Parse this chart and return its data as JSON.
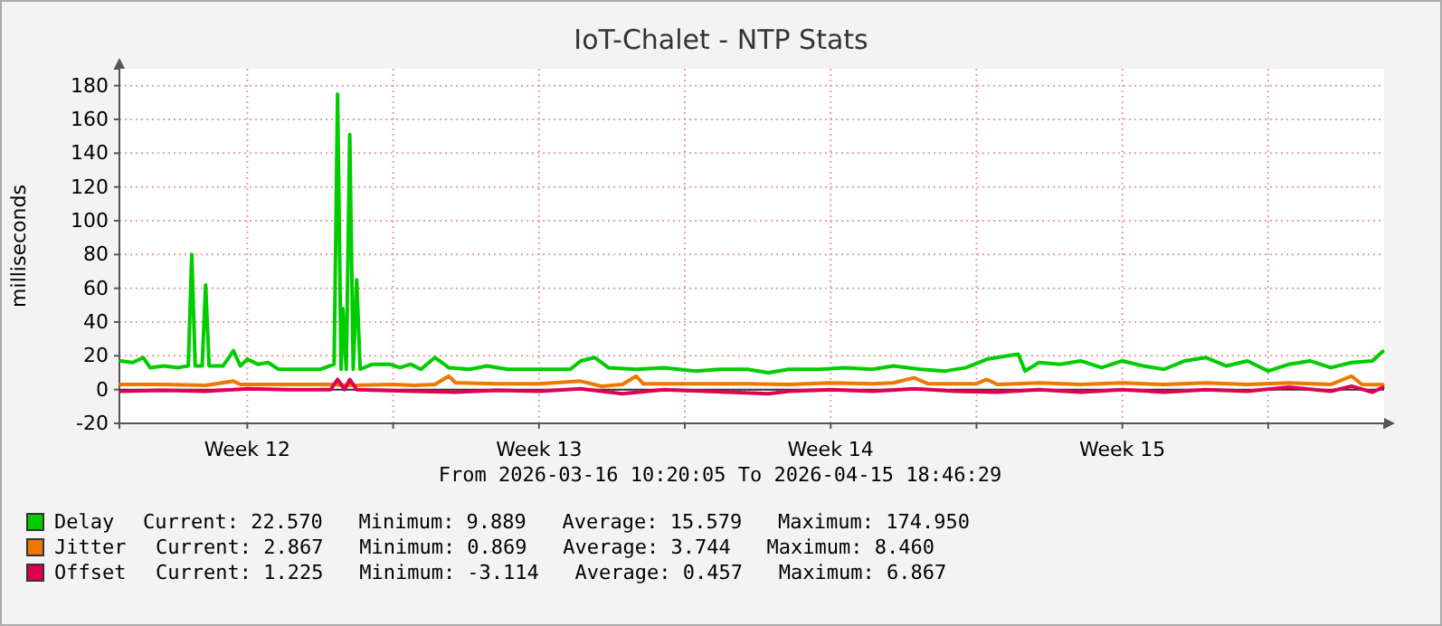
{
  "chart_data": {
    "type": "line",
    "title": "IoT-Chalet - NTP Stats",
    "subtitle": "From 2026-03-16 10:20:05 To 2026-04-15 18:46:29",
    "ylabel": "milliseconds",
    "xlim": [
      "2026-03-16T10:20",
      "2026-04-15T18:46"
    ],
    "xticks": [
      {
        "value": "2026-03-19T12:00",
        "label": "Week 12"
      },
      {
        "value": "2026-03-23",
        "label": null
      },
      {
        "value": "2026-03-26T12:00",
        "label": "Week 13"
      },
      {
        "value": "2026-03-30",
        "label": null
      },
      {
        "value": "2026-04-02T12:00",
        "label": "Week 14"
      },
      {
        "value": "2026-04-06",
        "label": null
      },
      {
        "value": "2026-04-09T12:00",
        "label": "Week 15"
      },
      {
        "value": "2026-04-13",
        "label": null
      }
    ],
    "ylim": [
      -20,
      190
    ],
    "yticks": [
      -20,
      0,
      20,
      40,
      60,
      80,
      100,
      120,
      140,
      160,
      180
    ],
    "grid": true,
    "legend": "bottom",
    "marker": "none",
    "line_style": "solid",
    "ref_lines": [
      {
        "axis": "y",
        "value": 0,
        "color": "#333333"
      }
    ],
    "series": [
      {
        "name": "Delay",
        "color": "#00cc00",
        "x": [
          "2026-03-16T11:00",
          "2026-03-16T18:00",
          "2026-03-17T00:00",
          "2026-03-17T04:00",
          "2026-03-17T12:00",
          "2026-03-17T20:00",
          "2026-03-18T02:00",
          "2026-03-18T04:00",
          "2026-03-18T06:00",
          "2026-03-18T10:00",
          "2026-03-18T12:00",
          "2026-03-18T14:00",
          "2026-03-18T22:00",
          "2026-03-19T04:00",
          "2026-03-19T08:00",
          "2026-03-19T12:00",
          "2026-03-19T18:00",
          "2026-03-20T00:00",
          "2026-03-20T06:00",
          "2026-03-20T18:00",
          "2026-03-21T06:00",
          "2026-03-21T14:00",
          "2026-03-21T16:00",
          "2026-03-21T18:00",
          "2026-03-21T19:00",
          "2026-03-21T21:00",
          "2026-03-21T23:00",
          "2026-03-22T01:00",
          "2026-03-22T03:00",
          "2026-03-22T05:00",
          "2026-03-22T12:00",
          "2026-03-22T22:00",
          "2026-03-23T04:00",
          "2026-03-23T10:00",
          "2026-03-23T16:00",
          "2026-03-24T00:00",
          "2026-03-24T08:00",
          "2026-03-24T20:00",
          "2026-03-25T06:00",
          "2026-03-25T18:00",
          "2026-03-26T06:00",
          "2026-03-26T20:00",
          "2026-03-27T06:00",
          "2026-03-27T12:00",
          "2026-03-27T20:00",
          "2026-03-28T04:00",
          "2026-03-28T20:00",
          "2026-03-29T12:00",
          "2026-03-30T06:00",
          "2026-03-30T20:00",
          "2026-03-31T12:00",
          "2026-04-01T00:00",
          "2026-04-01T12:00",
          "2026-04-02T06:00",
          "2026-04-02T20:00",
          "2026-04-03T12:00",
          "2026-04-04T00:00",
          "2026-04-04T16:00",
          "2026-04-05T06:00",
          "2026-04-05T18:00",
          "2026-04-06T06:00",
          "2026-04-06T18:00",
          "2026-04-07T00:00",
          "2026-04-07T04:00",
          "2026-04-07T12:00",
          "2026-04-08T00:00",
          "2026-04-08T12:00",
          "2026-04-09T00:00",
          "2026-04-09T12:00",
          "2026-04-10T00:00",
          "2026-04-10T12:00",
          "2026-04-11T00:00",
          "2026-04-11T12:00",
          "2026-04-12T00:00",
          "2026-04-12T12:00",
          "2026-04-13T00:00",
          "2026-04-13T12:00",
          "2026-04-14T00:00",
          "2026-04-14T12:00",
          "2026-04-15T00:00",
          "2026-04-15T12:00",
          "2026-04-15T18:00"
        ],
        "values": [
          17,
          16,
          19,
          13,
          14,
          13,
          14,
          80,
          14,
          14,
          62,
          14,
          14,
          23,
          14,
          18,
          15,
          16,
          12,
          12,
          12,
          15,
          175,
          12,
          48,
          12,
          151,
          12,
          65,
          12,
          15,
          15,
          13,
          15,
          12,
          19,
          13,
          12,
          14,
          12,
          12,
          12,
          12,
          17,
          19,
          13,
          12,
          13,
          11,
          12,
          12,
          10,
          12,
          12,
          13,
          12,
          14,
          12,
          11,
          13,
          18,
          20,
          21,
          11,
          16,
          15,
          17,
          13,
          17,
          14,
          12,
          17,
          19,
          14,
          17,
          11,
          15,
          17,
          13,
          16,
          17,
          22.6
        ]
      },
      {
        "name": "Jitter",
        "color": "#ee7700",
        "x": [
          "2026-03-16T11:00",
          "2026-03-17T12:00",
          "2026-03-18T12:00",
          "2026-03-19T04:00",
          "2026-03-19T08:00",
          "2026-03-20T12:00",
          "2026-03-21T12:00",
          "2026-03-22T00:00",
          "2026-03-23T00:00",
          "2026-03-23T12:00",
          "2026-03-24T00:00",
          "2026-03-24T08:00",
          "2026-03-24T12:00",
          "2026-03-25T12:00",
          "2026-03-26T12:00",
          "2026-03-27T12:00",
          "2026-03-28T00:00",
          "2026-03-28T12:00",
          "2026-03-28T20:00",
          "2026-03-29T00:00",
          "2026-03-30T12:00",
          "2026-03-31T12:00",
          "2026-04-01T12:00",
          "2026-04-02T12:00",
          "2026-04-03T12:00",
          "2026-04-04T00:00",
          "2026-04-04T12:00",
          "2026-04-04T20:00",
          "2026-04-06T00:00",
          "2026-04-06T06:00",
          "2026-04-06T12:00",
          "2026-04-07T12:00",
          "2026-04-08T12:00",
          "2026-04-09T12:00",
          "2026-04-10T12:00",
          "2026-04-11T12:00",
          "2026-04-12T12:00",
          "2026-04-13T12:00",
          "2026-04-14T12:00",
          "2026-04-15T00:00",
          "2026-04-15T06:00",
          "2026-04-15T18:00"
        ],
        "values": [
          3,
          3,
          2.5,
          5,
          3,
          3,
          3,
          2.5,
          3,
          2.5,
          3,
          8,
          4,
          3.5,
          3.5,
          5,
          2,
          3,
          8,
          3.5,
          3.5,
          3.5,
          3,
          4,
          3.5,
          4,
          7,
          3.5,
          3.5,
          6,
          3,
          4,
          3,
          4,
          3,
          4,
          3,
          4,
          3,
          8,
          3,
          2.9
        ]
      },
      {
        "name": "Offset",
        "color": "#dd0055",
        "x": [
          "2026-03-16T11:00",
          "2026-03-17T12:00",
          "2026-03-18T12:00",
          "2026-03-19T12:00",
          "2026-03-20T12:00",
          "2026-03-21T12:00",
          "2026-03-21T16:00",
          "2026-03-21T20:00",
          "2026-03-21T23:00",
          "2026-03-22T03:00",
          "2026-03-23T12:00",
          "2026-03-24T12:00",
          "2026-03-25T12:00",
          "2026-03-26T12:00",
          "2026-03-27T12:00",
          "2026-03-28T12:00",
          "2026-03-29T12:00",
          "2026-03-30T12:00",
          "2026-04-01T00:00",
          "2026-04-01T12:00",
          "2026-04-02T12:00",
          "2026-04-03T12:00",
          "2026-04-04T12:00",
          "2026-04-05T12:00",
          "2026-04-06T12:00",
          "2026-04-07T12:00",
          "2026-04-08T12:00",
          "2026-04-09T12:00",
          "2026-04-10T12:00",
          "2026-04-11T12:00",
          "2026-04-12T12:00",
          "2026-04-13T12:00",
          "2026-04-14T12:00",
          "2026-04-15T00:00",
          "2026-04-15T12:00",
          "2026-04-15T18:00"
        ],
        "values": [
          -1,
          -0.5,
          -1,
          0.5,
          0,
          0,
          6,
          0,
          6,
          0,
          -1,
          -1.5,
          -0.5,
          -1,
          0.5,
          -2.5,
          0,
          -1,
          -2.5,
          -1,
          0,
          -1,
          0.5,
          -1,
          -1.5,
          0,
          -1.5,
          0,
          -1.5,
          0,
          -1,
          1.5,
          -1,
          2,
          -1.5,
          1.2
        ]
      }
    ],
    "annotations": [
      "Current: 22.570   Minimum: 9.889   Average: 15.579   Maximum: 174.950",
      "Current: 2.867   Minimum: 0.869   Average: 3.744   Maximum: 8.460",
      "Current: 1.225   Minimum: -3.114   Average: 0.457   Maximum: 6.867"
    ]
  }
}
